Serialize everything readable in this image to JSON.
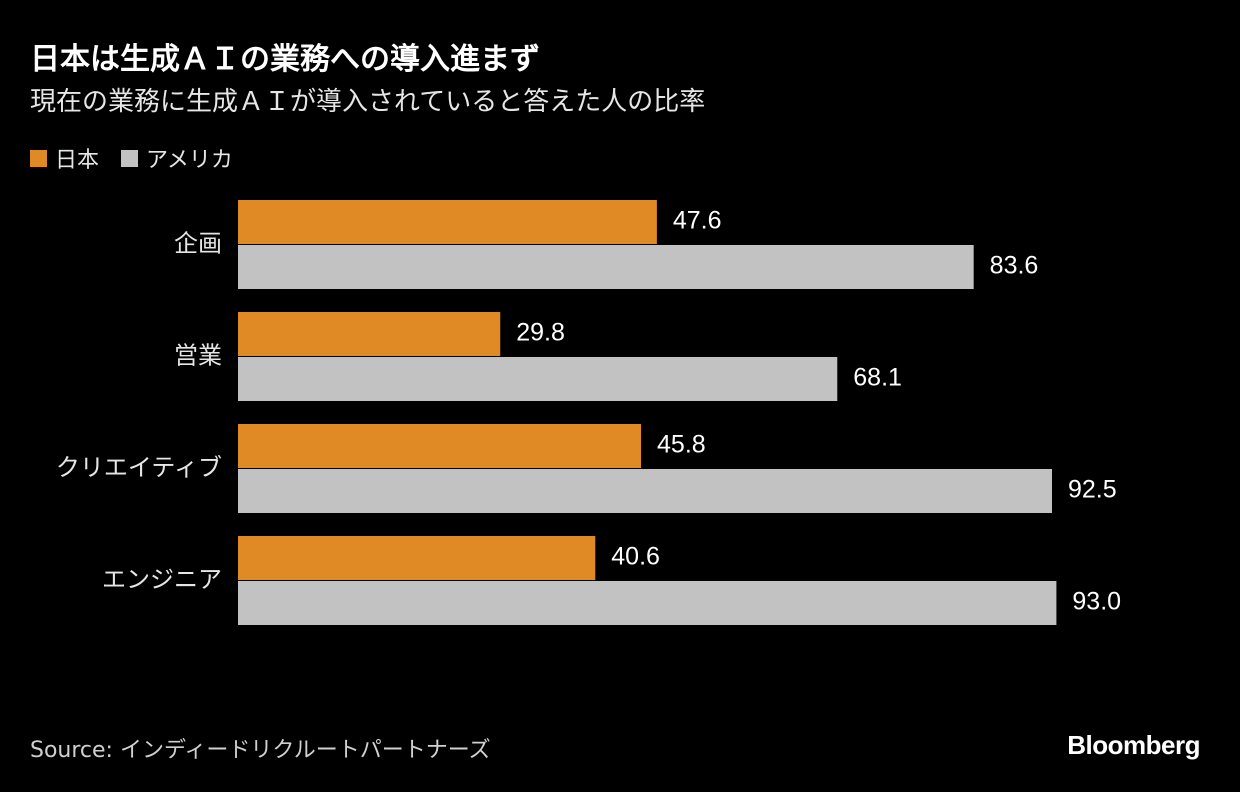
{
  "header": {
    "title": "日本は生成ＡＩの業務への導入進まず",
    "subtitle": "現在の業務に生成ＡＩが導入されていると答えた人の比率"
  },
  "legend": {
    "items": [
      {
        "label": "日本",
        "color": "#e08a25"
      },
      {
        "label": "アメリカ",
        "color": "#c2c2c2"
      }
    ]
  },
  "chart_data": {
    "type": "bar",
    "orientation": "horizontal",
    "categories": [
      "企画",
      "営業",
      "クリエイティブ",
      "エンジニア"
    ],
    "series": [
      {
        "name": "日本",
        "color": "#e08a25",
        "values": [
          47.6,
          29.8,
          45.8,
          40.6
        ]
      },
      {
        "name": "アメリカ",
        "color": "#c2c2c2",
        "values": [
          83.6,
          68.1,
          92.5,
          93.0
        ]
      }
    ],
    "xlim": [
      0,
      100
    ],
    "grid": false,
    "legend_position": "top-left",
    "data_labels": true
  },
  "footer": {
    "source": "Source: インディードリクルートパートナーズ",
    "logo": "Bloomberg"
  }
}
